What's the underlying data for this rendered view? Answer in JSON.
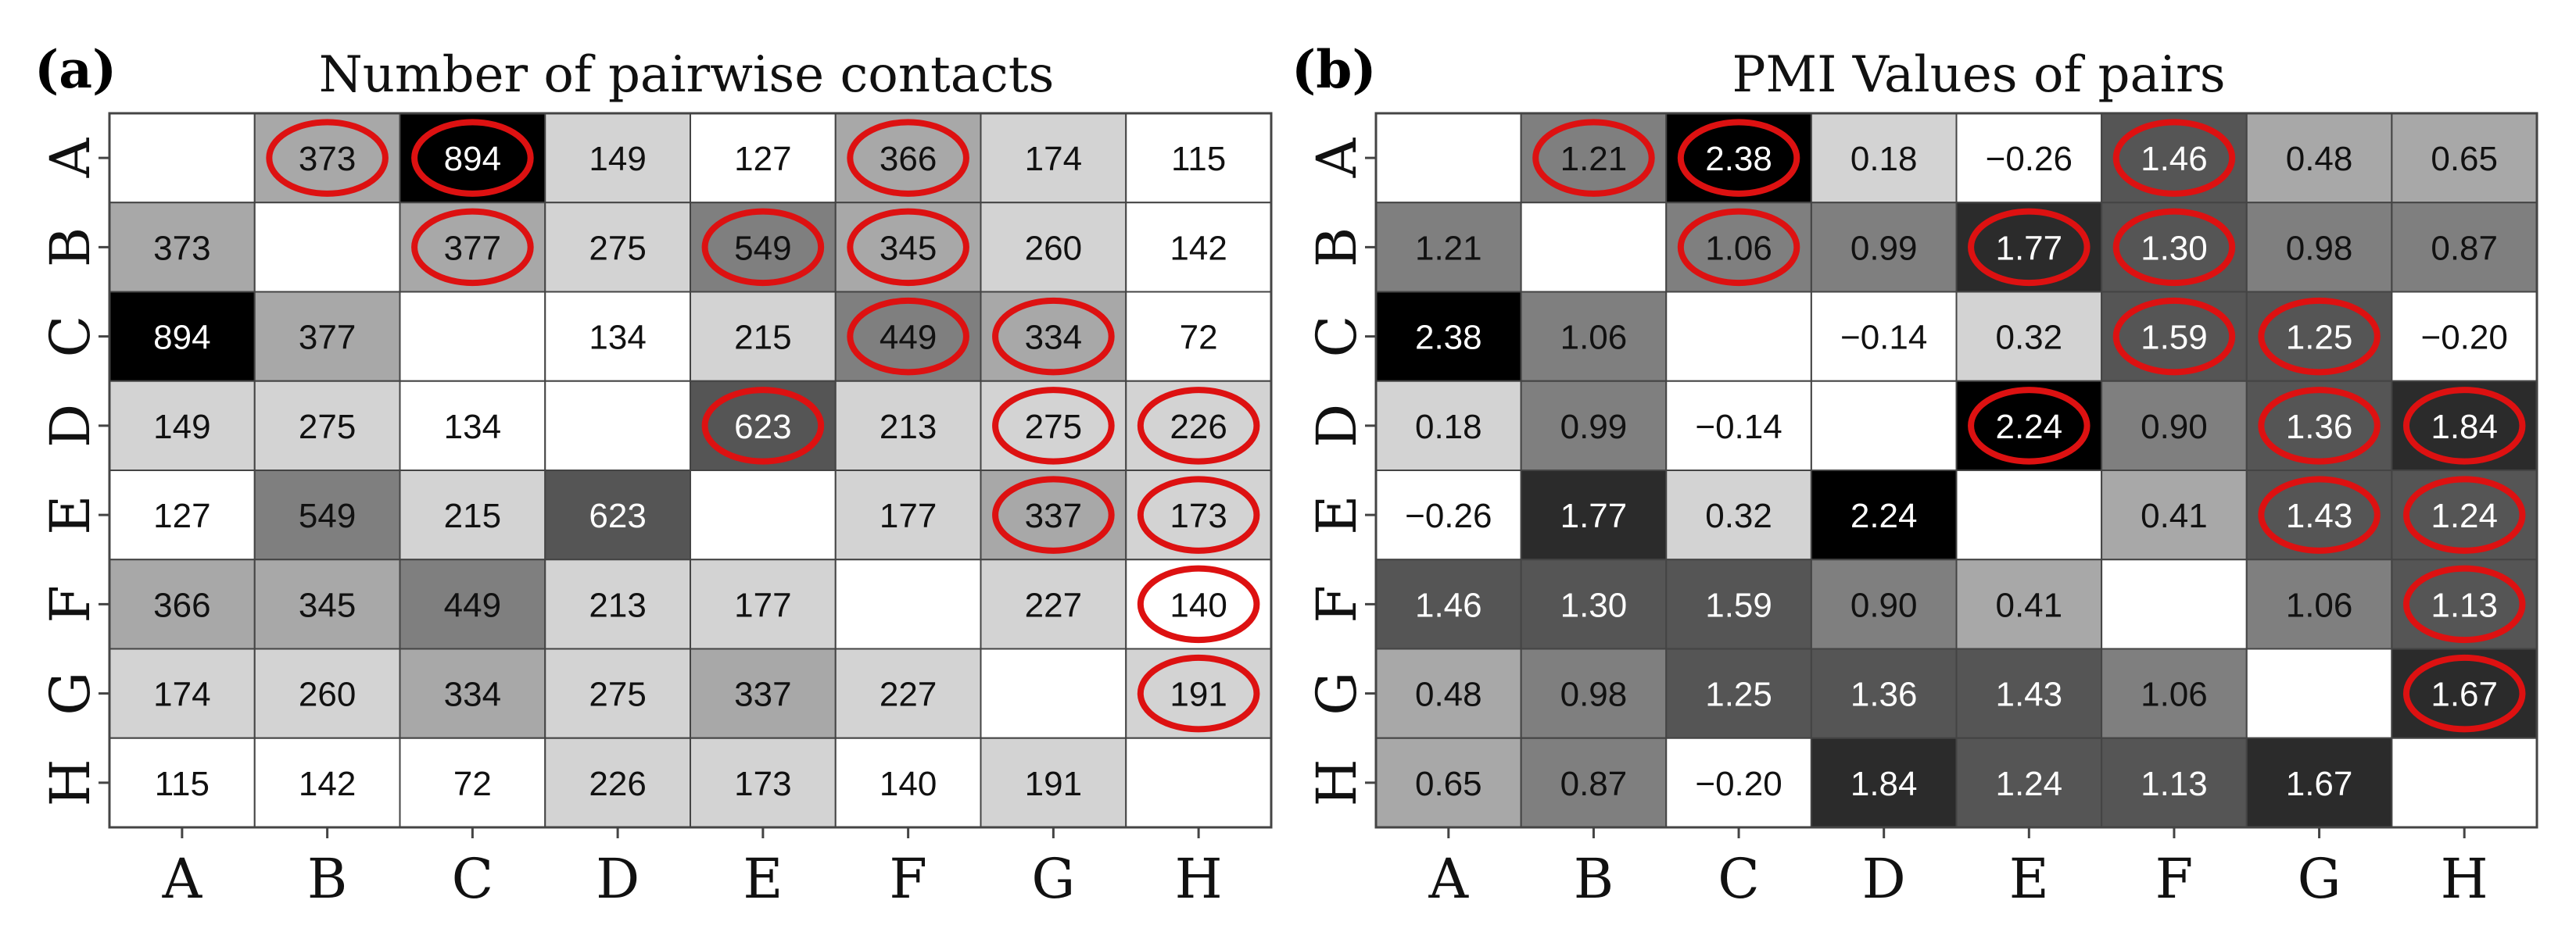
{
  "chart_data": [
    {
      "type": "heatmap",
      "panel_label": "(a)",
      "title": "Number of pairwise contacts",
      "x_categories": [
        "A",
        "B",
        "C",
        "D",
        "E",
        "F",
        "G",
        "H"
      ],
      "y_categories": [
        "A",
        "B",
        "C",
        "D",
        "E",
        "F",
        "G",
        "H"
      ],
      "values": [
        [
          "",
          "373",
          "894",
          "149",
          "127",
          "366",
          "174",
          "115"
        ],
        [
          "373",
          "",
          "377",
          "275",
          "549",
          "345",
          "260",
          "142"
        ],
        [
          "894",
          "377",
          "",
          "134",
          "215",
          "449",
          "334",
          "72"
        ],
        [
          "149",
          "275",
          "134",
          "",
          "623",
          "213",
          "275",
          "226"
        ],
        [
          "127",
          "549",
          "215",
          "623",
          "",
          "177",
          "337",
          "173"
        ],
        [
          "366",
          "345",
          "449",
          "213",
          "177",
          "",
          "227",
          "140"
        ],
        [
          "174",
          "260",
          "334",
          "275",
          "337",
          "227",
          "",
          "191"
        ],
        [
          "115",
          "142",
          "72",
          "226",
          "173",
          "140",
          "191",
          ""
        ]
      ],
      "shades": [
        [
          "#ffffff",
          "#a8a8a8",
          "#000000",
          "#d3d3d3",
          "#ffffff",
          "#a8a8a8",
          "#d3d3d3",
          "#ffffff"
        ],
        [
          "#a8a8a8",
          "#ffffff",
          "#a8a8a8",
          "#d3d3d3",
          "#7f7f7f",
          "#a8a8a8",
          "#d3d3d3",
          "#ffffff"
        ],
        [
          "#000000",
          "#a8a8a8",
          "#ffffff",
          "#ffffff",
          "#d3d3d3",
          "#7f7f7f",
          "#a8a8a8",
          "#ffffff"
        ],
        [
          "#d3d3d3",
          "#d3d3d3",
          "#ffffff",
          "#ffffff",
          "#555555",
          "#d3d3d3",
          "#d3d3d3",
          "#d3d3d3"
        ],
        [
          "#ffffff",
          "#7f7f7f",
          "#d3d3d3",
          "#555555",
          "#ffffff",
          "#d3d3d3",
          "#a8a8a8",
          "#d3d3d3"
        ],
        [
          "#a8a8a8",
          "#a8a8a8",
          "#7f7f7f",
          "#d3d3d3",
          "#d3d3d3",
          "#ffffff",
          "#d3d3d3",
          "#ffffff"
        ],
        [
          "#d3d3d3",
          "#d3d3d3",
          "#a8a8a8",
          "#d3d3d3",
          "#a8a8a8",
          "#d3d3d3",
          "#ffffff",
          "#d3d3d3"
        ],
        [
          "#ffffff",
          "#ffffff",
          "#ffffff",
          "#d3d3d3",
          "#d3d3d3",
          "#ffffff",
          "#d3d3d3",
          "#ffffff"
        ]
      ],
      "circled": [
        [
          0,
          1
        ],
        [
          0,
          2
        ],
        [
          0,
          5
        ],
        [
          1,
          2
        ],
        [
          1,
          4
        ],
        [
          1,
          5
        ],
        [
          2,
          5
        ],
        [
          2,
          6
        ],
        [
          3,
          4
        ],
        [
          3,
          6
        ],
        [
          3,
          7
        ],
        [
          4,
          6
        ],
        [
          4,
          7
        ],
        [
          5,
          7
        ],
        [
          6,
          7
        ]
      ]
    },
    {
      "type": "heatmap",
      "panel_label": "(b)",
      "title": "PMI Values of pairs",
      "x_categories": [
        "A",
        "B",
        "C",
        "D",
        "E",
        "F",
        "G",
        "H"
      ],
      "y_categories": [
        "A",
        "B",
        "C",
        "D",
        "E",
        "F",
        "G",
        "H"
      ],
      "values": [
        [
          "",
          "1.21",
          "2.38",
          "0.18",
          "−0.26",
          "1.46",
          "0.48",
          "0.65"
        ],
        [
          "1.21",
          "",
          "1.06",
          "0.99",
          "1.77",
          "1.30",
          "0.98",
          "0.87"
        ],
        [
          "2.38",
          "1.06",
          "",
          "−0.14",
          "0.32",
          "1.59",
          "1.25",
          "−0.20"
        ],
        [
          "0.18",
          "0.99",
          "−0.14",
          "",
          "2.24",
          "0.90",
          "1.36",
          "1.84"
        ],
        [
          "−0.26",
          "1.77",
          "0.32",
          "2.24",
          "",
          "0.41",
          "1.43",
          "1.24"
        ],
        [
          "1.46",
          "1.30",
          "1.59",
          "0.90",
          "0.41",
          "",
          "1.06",
          "1.13"
        ],
        [
          "0.48",
          "0.98",
          "1.25",
          "1.36",
          "1.43",
          "1.06",
          "",
          "1.67"
        ],
        [
          "0.65",
          "0.87",
          "−0.20",
          "1.84",
          "1.24",
          "1.13",
          "1.67",
          ""
        ]
      ],
      "shades": [
        [
          "#ffffff",
          "#7f7f7f",
          "#000000",
          "#d3d3d3",
          "#ffffff",
          "#555555",
          "#a8a8a8",
          "#a8a8a8"
        ],
        [
          "#7f7f7f",
          "#ffffff",
          "#7f7f7f",
          "#7f7f7f",
          "#2b2b2b",
          "#555555",
          "#7f7f7f",
          "#7f7f7f"
        ],
        [
          "#000000",
          "#7f7f7f",
          "#ffffff",
          "#ffffff",
          "#d3d3d3",
          "#555555",
          "#555555",
          "#ffffff"
        ],
        [
          "#d3d3d3",
          "#7f7f7f",
          "#ffffff",
          "#ffffff",
          "#000000",
          "#7f7f7f",
          "#555555",
          "#2b2b2b"
        ],
        [
          "#ffffff",
          "#2b2b2b",
          "#d3d3d3",
          "#000000",
          "#ffffff",
          "#a8a8a8",
          "#555555",
          "#555555"
        ],
        [
          "#555555",
          "#555555",
          "#555555",
          "#7f7f7f",
          "#a8a8a8",
          "#ffffff",
          "#7f7f7f",
          "#555555"
        ],
        [
          "#a8a8a8",
          "#7f7f7f",
          "#555555",
          "#555555",
          "#555555",
          "#7f7f7f",
          "#ffffff",
          "#2b2b2b"
        ],
        [
          "#a8a8a8",
          "#7f7f7f",
          "#ffffff",
          "#2b2b2b",
          "#555555",
          "#555555",
          "#2b2b2b",
          "#ffffff"
        ]
      ],
      "circled": [
        [
          0,
          1
        ],
        [
          0,
          2
        ],
        [
          0,
          5
        ],
        [
          1,
          2
        ],
        [
          1,
          4
        ],
        [
          1,
          5
        ],
        [
          2,
          5
        ],
        [
          2,
          6
        ],
        [
          3,
          4
        ],
        [
          3,
          6
        ],
        [
          3,
          7
        ],
        [
          4,
          6
        ],
        [
          4,
          7
        ],
        [
          5,
          7
        ],
        [
          6,
          7
        ]
      ]
    }
  ],
  "colors": {
    "circle": "#dd1111",
    "grid": "#444444",
    "text_dark": "#111111",
    "text_light": "#ffffff"
  }
}
